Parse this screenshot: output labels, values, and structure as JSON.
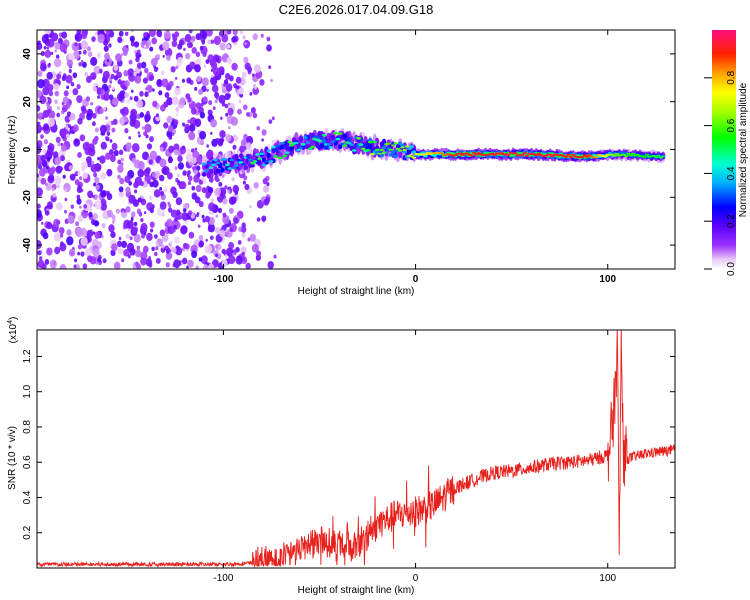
{
  "figure_title": "C2E6.2026.017.04.09.G18",
  "chart_data": [
    {
      "type": "heatmap",
      "xlabel": "Height of straight line (km)",
      "ylabel": "Frequency (Hz)",
      "xlim": [
        -197,
        135
      ],
      "ylim": [
        -50,
        50
      ],
      "xticks": [
        -100,
        0,
        100
      ],
      "yticks": [
        -40,
        -20,
        0,
        20,
        40
      ],
      "colorbar": {
        "label": "Normalized spectral amplitude",
        "range": [
          0,
          1
        ],
        "ticks": [
          0.0,
          0.2,
          0.4,
          0.6,
          0.8
        ]
      },
      "ridge": [
        {
          "x": -110,
          "y": -8,
          "a": 0.35
        },
        {
          "x": -95,
          "y": -6,
          "a": 0.45
        },
        {
          "x": -80,
          "y": -4,
          "a": 0.45
        },
        {
          "x": -60,
          "y": 3,
          "a": 0.5
        },
        {
          "x": -40,
          "y": 4,
          "a": 0.5
        },
        {
          "x": -25,
          "y": 1,
          "a": 0.6
        },
        {
          "x": -10,
          "y": 0,
          "a": 0.6
        },
        {
          "x": 0,
          "y": -2,
          "a": 0.7
        },
        {
          "x": 20,
          "y": -2,
          "a": 0.9
        },
        {
          "x": 60,
          "y": -2,
          "a": 0.95
        },
        {
          "x": 90,
          "y": -3,
          "a": 0.9
        },
        {
          "x": 105,
          "y": -2,
          "a": 0.6
        },
        {
          "x": 130,
          "y": -3,
          "a": 0.5
        }
      ]
    },
    {
      "type": "line",
      "xlabel": "Height of straight line (km)",
      "ylabel": "SNR (10 * v/v)",
      "scale_label": "(x10",
      "scale_exp": "4",
      "scale_close": ")",
      "xlim": [
        -197,
        135
      ],
      "ylim": [
        0,
        1.35
      ],
      "xticks": [
        -100,
        0,
        100
      ],
      "yticks": [
        0.2,
        0.4,
        0.6,
        0.8,
        1.0,
        1.2
      ],
      "color": "#e8201c",
      "series": [
        {
          "x": [
            -197,
            -150,
            -100,
            -80,
            -70,
            -60,
            -50,
            -40,
            -30,
            -20,
            -10,
            0,
            10,
            20,
            30,
            40,
            50,
            60,
            70,
            80,
            90,
            100,
            103,
            105,
            106,
            107,
            108,
            110,
            120,
            135
          ],
          "y": [
            0.02,
            0.02,
            0.02,
            0.03,
            0.05,
            0.12,
            0.15,
            0.13,
            0.12,
            0.25,
            0.3,
            0.32,
            0.36,
            0.45,
            0.5,
            0.54,
            0.55,
            0.57,
            0.59,
            0.6,
            0.61,
            0.64,
            0.85,
            1.25,
            0.06,
            1.35,
            0.65,
            0.62,
            0.65,
            0.67
          ]
        }
      ]
    }
  ]
}
